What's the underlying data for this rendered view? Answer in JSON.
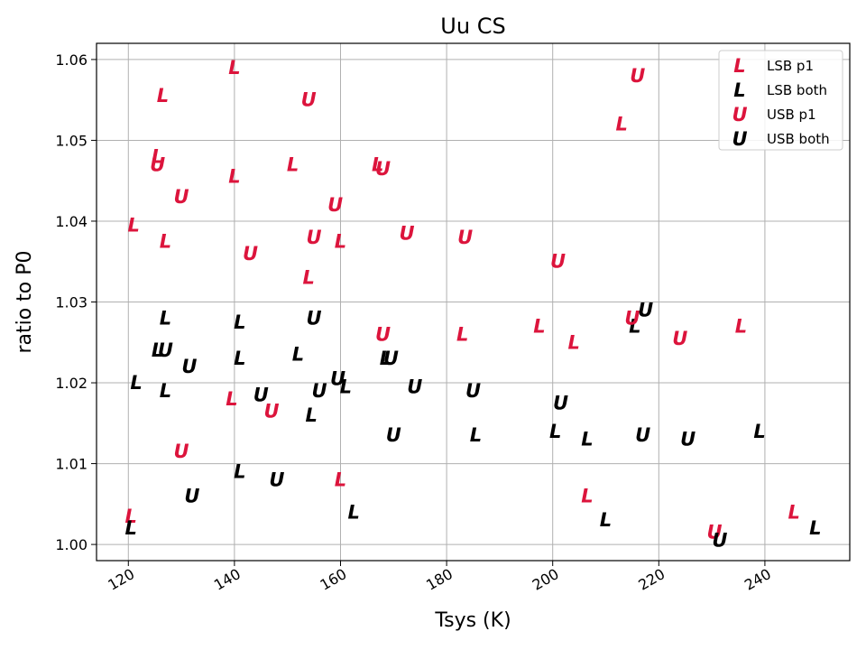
{
  "chart_data": {
    "type": "scatter",
    "title": "Uu CS",
    "xlabel": "Tsys (K)",
    "ylabel": "ratio to P0",
    "xlim": [
      114,
      256
    ],
    "ylim": [
      0.998,
      1.062
    ],
    "xticks": [
      120,
      140,
      160,
      180,
      200,
      220,
      240
    ],
    "yticks": [
      1.0,
      1.01,
      1.02,
      1.03,
      1.04,
      1.05,
      1.06
    ],
    "grid": true,
    "legend_position": "top-right",
    "series": [
      {
        "name": "LSB p1",
        "marker": "L",
        "color": "#dc143c",
        "points": [
          [
            140,
            1.059
          ],
          [
            126.5,
            1.0555
          ],
          [
            125.5,
            1.048
          ],
          [
            140,
            1.0455
          ],
          [
            151,
            1.047
          ],
          [
            167,
            1.047
          ],
          [
            121,
            1.0395
          ],
          [
            127,
            1.0375
          ],
          [
            160,
            1.0375
          ],
          [
            154,
            1.033
          ],
          [
            213,
            1.052
          ],
          [
            183,
            1.026
          ],
          [
            197.5,
            1.027
          ],
          [
            204,
            1.025
          ],
          [
            235.5,
            1.027
          ],
          [
            139.5,
            1.018
          ],
          [
            160,
            1.008
          ],
          [
            206.5,
            1.006
          ],
          [
            120.5,
            1.0035
          ],
          [
            245.5,
            1.004
          ]
        ]
      },
      {
        "name": "LSB both",
        "marker": "L",
        "color": "#000000",
        "points": [
          [
            127,
            1.028
          ],
          [
            141,
            1.0275
          ],
          [
            125.5,
            1.024
          ],
          [
            141,
            1.023
          ],
          [
            152,
            1.0235
          ],
          [
            121.5,
            1.02
          ],
          [
            127,
            1.019
          ],
          [
            161,
            1.0195
          ],
          [
            168.5,
            1.023
          ],
          [
            154.5,
            1.016
          ],
          [
            215.5,
            1.027
          ],
          [
            185.5,
            1.0135
          ],
          [
            200.5,
            1.014
          ],
          [
            206.5,
            1.013
          ],
          [
            239,
            1.014
          ],
          [
            141,
            1.009
          ],
          [
            162.5,
            1.004
          ],
          [
            210,
            1.003
          ],
          [
            120.5,
            1.002
          ],
          [
            249.5,
            1.002
          ]
        ]
      },
      {
        "name": "USB p1",
        "marker": "U",
        "color": "#dc143c",
        "points": [
          [
            216,
            1.058
          ],
          [
            154,
            1.055
          ],
          [
            125.5,
            1.047
          ],
          [
            168,
            1.0465
          ],
          [
            130,
            1.043
          ],
          [
            159,
            1.042
          ],
          [
            155,
            1.038
          ],
          [
            172.5,
            1.0385
          ],
          [
            183.5,
            1.038
          ],
          [
            143,
            1.036
          ],
          [
            201,
            1.035
          ],
          [
            168,
            1.026
          ],
          [
            215,
            1.028
          ],
          [
            224,
            1.0255
          ],
          [
            147,
            1.0165
          ],
          [
            130,
            1.0115
          ],
          [
            230.5,
            1.0015
          ]
        ]
      },
      {
        "name": "USB both",
        "marker": "U",
        "color": "#000000",
        "points": [
          [
            155,
            1.028
          ],
          [
            127,
            1.024
          ],
          [
            131.5,
            1.022
          ],
          [
            159.5,
            1.0205
          ],
          [
            169.5,
            1.023
          ],
          [
            174,
            1.0195
          ],
          [
            185,
            1.019
          ],
          [
            145,
            1.0185
          ],
          [
            156,
            1.019
          ],
          [
            201.5,
            1.0175
          ],
          [
            217.5,
            1.029
          ],
          [
            170,
            1.0135
          ],
          [
            217,
            1.0135
          ],
          [
            225.5,
            1.013
          ],
          [
            148,
            1.008
          ],
          [
            132,
            1.006
          ],
          [
            231.5,
            1.0005
          ]
        ]
      }
    ]
  }
}
